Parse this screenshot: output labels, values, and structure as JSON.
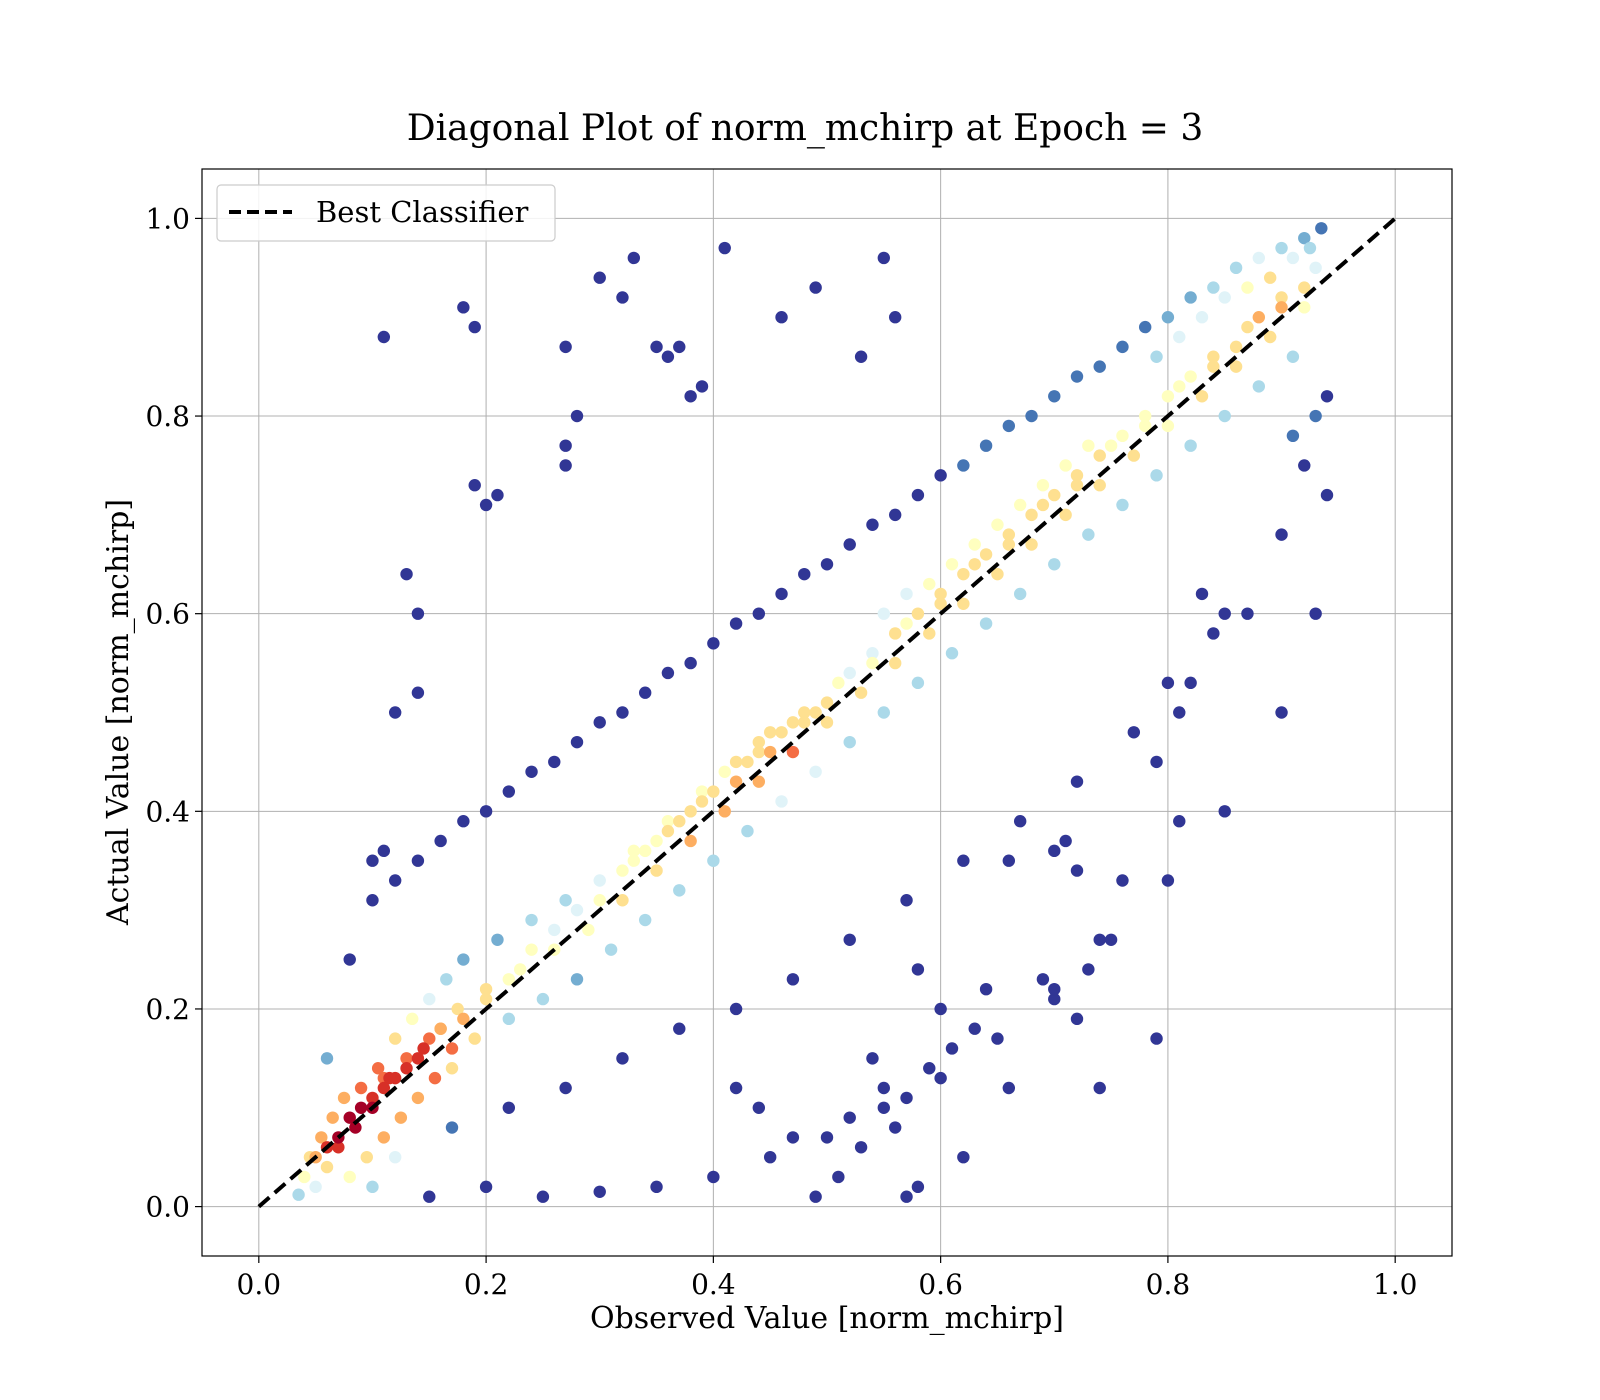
{
  "chart_data": {
    "type": "scatter",
    "title": "Diagonal Plot of norm_mchirp at Epoch = 3",
    "xlabel": "Observed Value [norm_mchirp]",
    "ylabel": "Actual Value [norm_mchirp]",
    "xlim": [
      -0.05,
      1.05
    ],
    "ylim": [
      -0.05,
      1.05
    ],
    "xticks": [
      "0.0",
      "0.2",
      "0.4",
      "0.6",
      "0.8",
      "1.0"
    ],
    "yticks": [
      "0.0",
      "0.2",
      "0.4",
      "0.6",
      "0.8",
      "1.0"
    ],
    "grid": true,
    "legend": {
      "placement": "upper-left",
      "entries": [
        {
          "label": "Best Classifier",
          "style": "dashed",
          "color": "#000000"
        }
      ]
    },
    "reference_line": {
      "label": "Best Classifier",
      "x": [
        0.0,
        1.0
      ],
      "y": [
        0.0,
        1.0
      ],
      "style": "dashed",
      "color": "#000000"
    },
    "colormap": "RdYlBu_r (density: dark blue = sparse, dark red = dense)",
    "colormap_stops": [
      "#313695",
      "#4575b4",
      "#74add1",
      "#abd9e9",
      "#e0f3f8",
      "#ffffbf",
      "#fee090",
      "#fdae61",
      "#f46d43",
      "#d73027",
      "#a50026"
    ],
    "points": [
      [
        0.035,
        0.012
      ],
      [
        0.04,
        0.03
      ],
      [
        0.045,
        0.05
      ],
      [
        0.05,
        0.02
      ],
      [
        0.055,
        0.07
      ],
      [
        0.06,
        0.04
      ],
      [
        0.065,
        0.09
      ],
      [
        0.07,
        0.06
      ],
      [
        0.075,
        0.11
      ],
      [
        0.08,
        0.03
      ],
      [
        0.085,
        0.08
      ],
      [
        0.09,
        0.12
      ],
      [
        0.095,
        0.05
      ],
      [
        0.1,
        0.1
      ],
      [
        0.105,
        0.14
      ],
      [
        0.11,
        0.07
      ],
      [
        0.115,
        0.13
      ],
      [
        0.12,
        0.17
      ],
      [
        0.125,
        0.09
      ],
      [
        0.13,
        0.15
      ],
      [
        0.135,
        0.19
      ],
      [
        0.14,
        0.11
      ],
      [
        0.145,
        0.16
      ],
      [
        0.15,
        0.21
      ],
      [
        0.155,
        0.13
      ],
      [
        0.16,
        0.18
      ],
      [
        0.165,
        0.23
      ],
      [
        0.17,
        0.14
      ],
      [
        0.175,
        0.2
      ],
      [
        0.18,
        0.25
      ],
      [
        0.19,
        0.17
      ],
      [
        0.2,
        0.22
      ],
      [
        0.21,
        0.27
      ],
      [
        0.22,
        0.19
      ],
      [
        0.23,
        0.24
      ],
      [
        0.24,
        0.29
      ],
      [
        0.25,
        0.21
      ],
      [
        0.26,
        0.26
      ],
      [
        0.27,
        0.31
      ],
      [
        0.28,
        0.23
      ],
      [
        0.29,
        0.28
      ],
      [
        0.3,
        0.33
      ],
      [
        0.31,
        0.26
      ],
      [
        0.32,
        0.31
      ],
      [
        0.33,
        0.36
      ],
      [
        0.34,
        0.29
      ],
      [
        0.35,
        0.34
      ],
      [
        0.36,
        0.39
      ],
      [
        0.37,
        0.32
      ],
      [
        0.38,
        0.37
      ],
      [
        0.39,
        0.42
      ],
      [
        0.4,
        0.35
      ],
      [
        0.41,
        0.4
      ],
      [
        0.42,
        0.45
      ],
      [
        0.43,
        0.38
      ],
      [
        0.44,
        0.43
      ],
      [
        0.45,
        0.48
      ],
      [
        0.46,
        0.41
      ],
      [
        0.47,
        0.46
      ],
      [
        0.48,
        0.5
      ],
      [
        0.49,
        0.44
      ],
      [
        0.5,
        0.49
      ],
      [
        0.51,
        0.53
      ],
      [
        0.52,
        0.47
      ],
      [
        0.53,
        0.52
      ],
      [
        0.54,
        0.56
      ],
      [
        0.55,
        0.5
      ],
      [
        0.56,
        0.55
      ],
      [
        0.57,
        0.59
      ],
      [
        0.58,
        0.53
      ],
      [
        0.59,
        0.58
      ],
      [
        0.6,
        0.62
      ],
      [
        0.61,
        0.56
      ],
      [
        0.62,
        0.61
      ],
      [
        0.63,
        0.65
      ],
      [
        0.64,
        0.59
      ],
      [
        0.65,
        0.64
      ],
      [
        0.66,
        0.68
      ],
      [
        0.67,
        0.62
      ],
      [
        0.68,
        0.67
      ],
      [
        0.69,
        0.71
      ],
      [
        0.7,
        0.65
      ],
      [
        0.71,
        0.7
      ],
      [
        0.72,
        0.74
      ],
      [
        0.73,
        0.68
      ],
      [
        0.74,
        0.73
      ],
      [
        0.75,
        0.77
      ],
      [
        0.76,
        0.71
      ],
      [
        0.77,
        0.76
      ],
      [
        0.78,
        0.8
      ],
      [
        0.79,
        0.74
      ],
      [
        0.8,
        0.79
      ],
      [
        0.81,
        0.83
      ],
      [
        0.82,
        0.77
      ],
      [
        0.83,
        0.82
      ],
      [
        0.84,
        0.86
      ],
      [
        0.85,
        0.8
      ],
      [
        0.86,
        0.85
      ],
      [
        0.87,
        0.89
      ],
      [
        0.88,
        0.83
      ],
      [
        0.89,
        0.88
      ],
      [
        0.9,
        0.92
      ],
      [
        0.91,
        0.86
      ],
      [
        0.92,
        0.91
      ],
      [
        0.93,
        0.95
      ],
      [
        0.935,
        0.99
      ],
      [
        0.92,
        0.98
      ],
      [
        0.9,
        0.97
      ],
      [
        0.88,
        0.96
      ],
      [
        0.86,
        0.95
      ],
      [
        0.84,
        0.93
      ],
      [
        0.82,
        0.92
      ],
      [
        0.8,
        0.9
      ],
      [
        0.78,
        0.89
      ],
      [
        0.76,
        0.87
      ],
      [
        0.74,
        0.85
      ],
      [
        0.72,
        0.84
      ],
      [
        0.7,
        0.82
      ],
      [
        0.68,
        0.8
      ],
      [
        0.66,
        0.79
      ],
      [
        0.64,
        0.77
      ],
      [
        0.62,
        0.75
      ],
      [
        0.6,
        0.74
      ],
      [
        0.58,
        0.72
      ],
      [
        0.56,
        0.7
      ],
      [
        0.54,
        0.69
      ],
      [
        0.52,
        0.67
      ],
      [
        0.5,
        0.65
      ],
      [
        0.48,
        0.64
      ],
      [
        0.46,
        0.62
      ],
      [
        0.44,
        0.6
      ],
      [
        0.42,
        0.59
      ],
      [
        0.4,
        0.57
      ],
      [
        0.38,
        0.55
      ],
      [
        0.36,
        0.54
      ],
      [
        0.34,
        0.52
      ],
      [
        0.32,
        0.5
      ],
      [
        0.3,
        0.49
      ],
      [
        0.28,
        0.47
      ],
      [
        0.26,
        0.45
      ],
      [
        0.24,
        0.44
      ],
      [
        0.22,
        0.42
      ],
      [
        0.2,
        0.4
      ],
      [
        0.18,
        0.39
      ],
      [
        0.16,
        0.37
      ],
      [
        0.14,
        0.35
      ],
      [
        0.12,
        0.33
      ],
      [
        0.1,
        0.31
      ],
      [
        0.08,
        0.25
      ],
      [
        0.06,
        0.15
      ],
      [
        0.1,
        0.02
      ],
      [
        0.15,
        0.01
      ],
      [
        0.2,
        0.02
      ],
      [
        0.25,
        0.01
      ],
      [
        0.3,
        0.015
      ],
      [
        0.35,
        0.02
      ],
      [
        0.4,
        0.03
      ],
      [
        0.45,
        0.05
      ],
      [
        0.5,
        0.07
      ],
      [
        0.55,
        0.1
      ],
      [
        0.6,
        0.13
      ],
      [
        0.65,
        0.17
      ],
      [
        0.7,
        0.22
      ],
      [
        0.75,
        0.27
      ],
      [
        0.8,
        0.33
      ],
      [
        0.85,
        0.4
      ],
      [
        0.9,
        0.5
      ],
      [
        0.93,
        0.6
      ],
      [
        0.94,
        0.72
      ],
      [
        0.94,
        0.82
      ],
      [
        0.12,
        0.05
      ],
      [
        0.17,
        0.08
      ],
      [
        0.22,
        0.1
      ],
      [
        0.27,
        0.12
      ],
      [
        0.32,
        0.15
      ],
      [
        0.37,
        0.18
      ],
      [
        0.42,
        0.2
      ],
      [
        0.47,
        0.23
      ],
      [
        0.52,
        0.27
      ],
      [
        0.57,
        0.31
      ],
      [
        0.62,
        0.35
      ],
      [
        0.67,
        0.39
      ],
      [
        0.72,
        0.43
      ],
      [
        0.77,
        0.48
      ],
      [
        0.82,
        0.53
      ],
      [
        0.87,
        0.6
      ],
      [
        0.9,
        0.68
      ],
      [
        0.92,
        0.75
      ],
      [
        0.93,
        0.8
      ],
      [
        0.91,
        0.78
      ],
      [
        0.18,
        0.91
      ],
      [
        0.19,
        0.89
      ],
      [
        0.11,
        0.88
      ],
      [
        0.3,
        0.94
      ],
      [
        0.32,
        0.92
      ],
      [
        0.41,
        0.97
      ],
      [
        0.33,
        0.96
      ],
      [
        0.27,
        0.87
      ],
      [
        0.36,
        0.86
      ],
      [
        0.37,
        0.87
      ],
      [
        0.38,
        0.82
      ],
      [
        0.39,
        0.83
      ],
      [
        0.28,
        0.8
      ],
      [
        0.27,
        0.77
      ],
      [
        0.27,
        0.75
      ],
      [
        0.19,
        0.73
      ],
      [
        0.2,
        0.71
      ],
      [
        0.21,
        0.72
      ],
      [
        0.14,
        0.6
      ],
      [
        0.13,
        0.64
      ],
      [
        0.12,
        0.5
      ],
      [
        0.14,
        0.52
      ],
      [
        0.1,
        0.35
      ],
      [
        0.11,
        0.36
      ],
      [
        0.35,
        0.87
      ],
      [
        0.53,
        0.86
      ],
      [
        0.55,
        0.96
      ],
      [
        0.56,
        0.9
      ],
      [
        0.46,
        0.9
      ],
      [
        0.49,
        0.93
      ],
      [
        0.62,
        0.05
      ],
      [
        0.58,
        0.02
      ],
      [
        0.57,
        0.01
      ],
      [
        0.49,
        0.01
      ],
      [
        0.47,
        0.07
      ],
      [
        0.51,
        0.03
      ],
      [
        0.52,
        0.09
      ],
      [
        0.53,
        0.06
      ],
      [
        0.42,
        0.12
      ],
      [
        0.44,
        0.1
      ],
      [
        0.66,
        0.12
      ],
      [
        0.69,
        0.23
      ],
      [
        0.7,
        0.21
      ],
      [
        0.73,
        0.24
      ],
      [
        0.74,
        0.12
      ],
      [
        0.72,
        0.19
      ],
      [
        0.74,
        0.27
      ],
      [
        0.79,
        0.17
      ],
      [
        0.76,
        0.33
      ],
      [
        0.81,
        0.39
      ],
      [
        0.79,
        0.45
      ],
      [
        0.81,
        0.5
      ],
      [
        0.8,
        0.53
      ],
      [
        0.84,
        0.58
      ],
      [
        0.85,
        0.6
      ],
      [
        0.83,
        0.62
      ],
      [
        0.71,
        0.37
      ],
      [
        0.7,
        0.36
      ],
      [
        0.72,
        0.34
      ],
      [
        0.66,
        0.35
      ],
      [
        0.64,
        0.22
      ],
      [
        0.63,
        0.18
      ],
      [
        0.61,
        0.16
      ],
      [
        0.6,
        0.2
      ],
      [
        0.59,
        0.14
      ],
      [
        0.57,
        0.11
      ],
      [
        0.55,
        0.12
      ],
      [
        0.56,
        0.08
      ],
      [
        0.54,
        0.15
      ],
      [
        0.58,
        0.24
      ],
      [
        0.15,
        0.17
      ],
      [
        0.16,
        0.18
      ],
      [
        0.17,
        0.16
      ],
      [
        0.14,
        0.15
      ],
      [
        0.18,
        0.19
      ],
      [
        0.2,
        0.21
      ],
      [
        0.22,
        0.23
      ],
      [
        0.24,
        0.26
      ],
      [
        0.26,
        0.28
      ],
      [
        0.28,
        0.3
      ],
      [
        0.3,
        0.31
      ],
      [
        0.32,
        0.34
      ],
      [
        0.34,
        0.36
      ],
      [
        0.36,
        0.38
      ],
      [
        0.38,
        0.4
      ],
      [
        0.4,
        0.42
      ],
      [
        0.42,
        0.43
      ],
      [
        0.44,
        0.46
      ],
      [
        0.46,
        0.48
      ],
      [
        0.48,
        0.49
      ],
      [
        0.5,
        0.51
      ],
      [
        0.52,
        0.54
      ],
      [
        0.54,
        0.55
      ],
      [
        0.56,
        0.58
      ],
      [
        0.58,
        0.6
      ],
      [
        0.6,
        0.61
      ],
      [
        0.62,
        0.64
      ],
      [
        0.64,
        0.66
      ],
      [
        0.66,
        0.67
      ],
      [
        0.68,
        0.7
      ],
      [
        0.7,
        0.72
      ],
      [
        0.72,
        0.73
      ],
      [
        0.74,
        0.76
      ],
      [
        0.76,
        0.78
      ],
      [
        0.78,
        0.79
      ],
      [
        0.8,
        0.82
      ],
      [
        0.82,
        0.84
      ],
      [
        0.84,
        0.85
      ],
      [
        0.86,
        0.87
      ],
      [
        0.88,
        0.9
      ],
      [
        0.9,
        0.91
      ],
      [
        0.92,
        0.93
      ],
      [
        0.925,
        0.97
      ],
      [
        0.91,
        0.96
      ],
      [
        0.89,
        0.94
      ],
      [
        0.87,
        0.93
      ],
      [
        0.85,
        0.92
      ],
      [
        0.83,
        0.9
      ],
      [
        0.81,
        0.88
      ],
      [
        0.79,
        0.86
      ],
      [
        0.08,
        0.09
      ],
      [
        0.09,
        0.1
      ],
      [
        0.1,
        0.11
      ],
      [
        0.11,
        0.12
      ],
      [
        0.12,
        0.13
      ],
      [
        0.13,
        0.14
      ],
      [
        0.07,
        0.07
      ],
      [
        0.06,
        0.06
      ],
      [
        0.05,
        0.05
      ],
      [
        0.11,
        0.13
      ],
      [
        0.43,
        0.45
      ],
      [
        0.44,
        0.47
      ],
      [
        0.45,
        0.46
      ],
      [
        0.47,
        0.49
      ],
      [
        0.49,
        0.5
      ],
      [
        0.41,
        0.44
      ],
      [
        0.39,
        0.41
      ],
      [
        0.37,
        0.39
      ],
      [
        0.35,
        0.37
      ],
      [
        0.33,
        0.35
      ],
      [
        0.55,
        0.6
      ],
      [
        0.57,
        0.62
      ],
      [
        0.59,
        0.63
      ],
      [
        0.61,
        0.65
      ],
      [
        0.63,
        0.67
      ],
      [
        0.65,
        0.69
      ],
      [
        0.67,
        0.71
      ],
      [
        0.69,
        0.73
      ],
      [
        0.71,
        0.75
      ],
      [
        0.73,
        0.77
      ]
    ]
  }
}
